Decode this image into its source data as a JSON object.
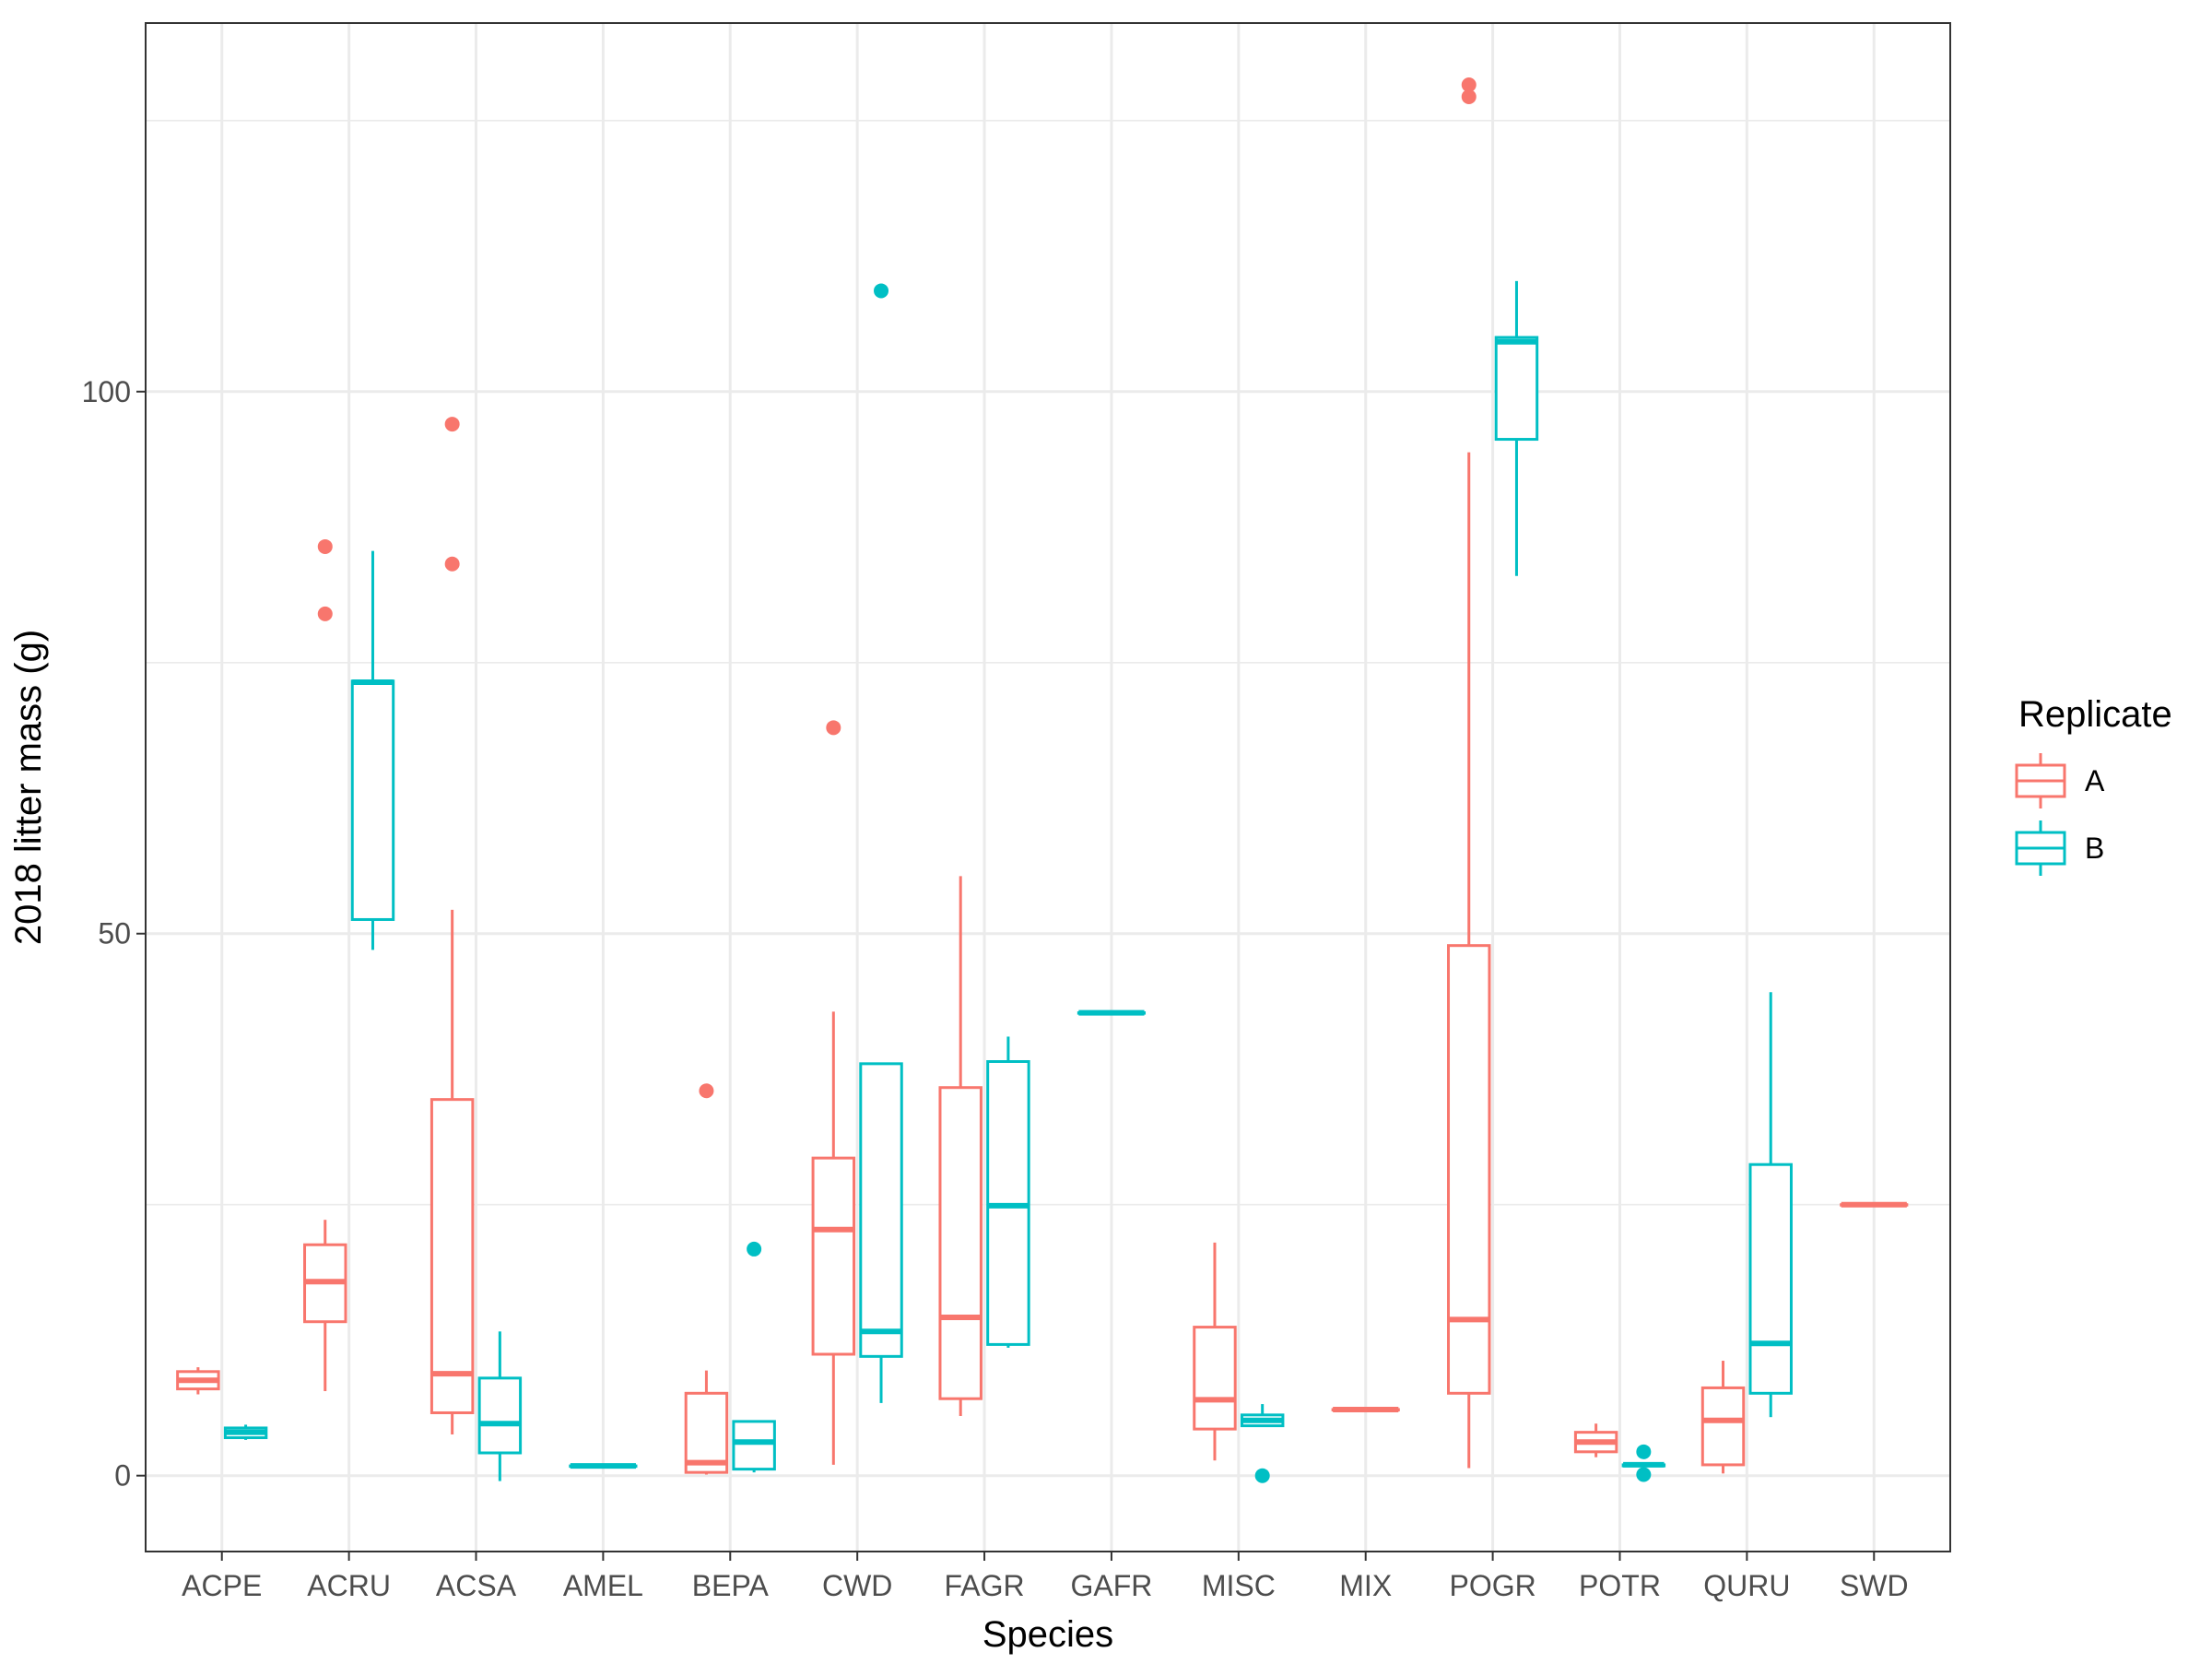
{
  "chart_data": {
    "type": "boxplot",
    "xlabel": "Species",
    "ylabel": "2018 litter mass (g)",
    "categories": [
      "ACPE",
      "ACRU",
      "ACSA",
      "AMEL",
      "BEPA",
      "CWD",
      "FAGR",
      "GAFR",
      "MISC",
      "MIX",
      "POGR",
      "POTR",
      "QURU",
      "SWD"
    ],
    "ylim": [
      -7,
      134
    ],
    "y_ticks": [
      0,
      50,
      100
    ],
    "y_tick_labels": [
      "0",
      "50",
      "100"
    ],
    "grid": true,
    "legend": {
      "title": "Replicate",
      "position": "right",
      "entries": [
        {
          "label": "A",
          "color": "#F8766D"
        },
        {
          "label": "B",
          "color": "#00BFC4"
        }
      ]
    },
    "series": [
      {
        "name": "A",
        "color": "#F8766D",
        "boxes": [
          {
            "category": "ACPE",
            "min": 7.5,
            "q1": 8.0,
            "median": 8.8,
            "q3": 9.6,
            "max": 10.0,
            "outliers": []
          },
          {
            "category": "ACRU",
            "min": 7.8,
            "q1": 14.2,
            "median": 17.9,
            "q3": 21.3,
            "max": 23.6,
            "outliers": [
              79.5,
              85.7
            ]
          },
          {
            "category": "ACSA",
            "min": 3.8,
            "q1": 5.8,
            "median": 9.4,
            "q3": 34.7,
            "max": 52.2,
            "outliers": [
              84.1,
              97.0
            ]
          },
          {
            "category": "BEPA",
            "min": 0.1,
            "q1": 0.3,
            "median": 1.2,
            "q3": 7.6,
            "max": 9.7,
            "outliers": [
              35.5
            ]
          },
          {
            "category": "CWD",
            "min": 1.0,
            "q1": 11.2,
            "median": 22.7,
            "q3": 29.3,
            "max": 42.8,
            "outliers": [
              69.0
            ]
          },
          {
            "category": "FAGR",
            "min": 5.5,
            "q1": 7.1,
            "median": 14.6,
            "q3": 35.8,
            "max": 55.3,
            "outliers": []
          },
          {
            "category": "MISC",
            "min": 1.4,
            "q1": 4.3,
            "median": 7.0,
            "q3": 13.7,
            "max": 21.5,
            "outliers": []
          },
          {
            "category": "MIX",
            "min": 6.1,
            "q1": 6.1,
            "median": 6.1,
            "q3": 6.1,
            "max": 6.1,
            "outliers": []
          },
          {
            "category": "POGR",
            "min": 0.7,
            "q1": 7.6,
            "median": 14.4,
            "q3": 48.9,
            "max": 94.4,
            "outliers": [
              127.2,
              128.3
            ]
          },
          {
            "category": "POTR",
            "min": 1.7,
            "q1": 2.2,
            "median": 3.1,
            "q3": 4.0,
            "max": 4.8,
            "outliers": []
          },
          {
            "category": "QURU",
            "min": 0.2,
            "q1": 1.0,
            "median": 5.1,
            "q3": 8.1,
            "max": 10.6,
            "outliers": []
          },
          {
            "category": "SWD",
            "min": 25.0,
            "q1": 25.0,
            "median": 25.0,
            "q3": 25.0,
            "max": 25.0,
            "outliers": []
          }
        ]
      },
      {
        "name": "B",
        "color": "#00BFC4",
        "boxes": [
          {
            "category": "ACPE",
            "min": 3.3,
            "q1": 3.5,
            "median": 4.0,
            "q3": 4.4,
            "max": 4.7,
            "outliers": []
          },
          {
            "category": "ACRU",
            "min": 48.5,
            "q1": 51.3,
            "median": 73.2,
            "q3": 73.3,
            "max": 85.3,
            "outliers": []
          },
          {
            "category": "ACSA",
            "min": -0.5,
            "q1": 2.1,
            "median": 4.8,
            "q3": 9.0,
            "max": 13.3,
            "outliers": []
          },
          {
            "category": "AMEL",
            "min": 0.9,
            "q1": 0.9,
            "median": 0.9,
            "q3": 0.9,
            "max": 0.9,
            "outliers": []
          },
          {
            "category": "BEPA",
            "min": 0.3,
            "q1": 0.6,
            "median": 3.1,
            "q3": 5.0,
            "max": 5.0,
            "outliers": [
              20.9
            ]
          },
          {
            "category": "CWD",
            "min": 6.7,
            "q1": 11.0,
            "median": 13.3,
            "q3": 38.0,
            "max": 38.0,
            "outliers": [
              109.3
            ]
          },
          {
            "category": "FAGR",
            "min": 11.8,
            "q1": 12.1,
            "median": 24.9,
            "q3": 38.2,
            "max": 40.5,
            "outliers": []
          },
          {
            "category": "GAFR",
            "min": 42.7,
            "q1": 42.7,
            "median": 42.7,
            "q3": 42.7,
            "max": 42.7,
            "outliers": []
          },
          {
            "category": "MISC",
            "min": 4.6,
            "q1": 4.6,
            "median": 5.1,
            "q3": 5.6,
            "max": 6.6,
            "outliers": [
              0.0
            ]
          },
          {
            "category": "POGR",
            "min": 83.0,
            "q1": 95.6,
            "median": 104.6,
            "q3": 105.0,
            "max": 110.2,
            "outliers": []
          },
          {
            "category": "POTR",
            "min": 0.8,
            "q1": 0.9,
            "median": 1.0,
            "q3": 1.0,
            "max": 1.1,
            "outliers": [
              0.1,
              2.2
            ]
          },
          {
            "category": "QURU",
            "min": 5.4,
            "q1": 7.6,
            "median": 12.2,
            "q3": 28.7,
            "max": 44.6,
            "outliers": []
          }
        ]
      }
    ]
  }
}
